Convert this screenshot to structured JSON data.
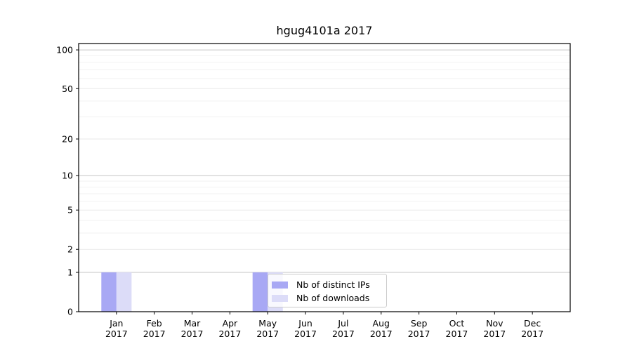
{
  "chart_data": {
    "type": "bar",
    "title": "hgug4101a 2017",
    "categories": [
      "Jan",
      "Feb",
      "Mar",
      "Apr",
      "May",
      "Jun",
      "Jul",
      "Aug",
      "Sep",
      "Oct",
      "Nov",
      "Dec"
    ],
    "x_year_label": "2017",
    "series": [
      {
        "name": "Nb of distinct IPs",
        "color": "#a8a8f4",
        "values": [
          1,
          0,
          0,
          0,
          1,
          0,
          0,
          0,
          0,
          0,
          0,
          0
        ]
      },
      {
        "name": "Nb of downloads",
        "color": "#dcdcf8",
        "values": [
          1,
          0,
          0,
          0,
          1,
          0,
          0,
          0,
          0,
          0,
          0,
          0
        ]
      }
    ],
    "yscale": "log1p",
    "ylim": [
      0,
      112
    ],
    "yticks": [
      0,
      1,
      2,
      5,
      10,
      20,
      50,
      100
    ],
    "minor_yticks": [
      3,
      4,
      6,
      7,
      8,
      9,
      30,
      40,
      60,
      70,
      80,
      90
    ],
    "decade_gridlines": [
      1,
      10,
      100
    ],
    "grid": true,
    "legend_position": "lower right inside",
    "colors": {
      "decade_grid": "#c6c6c6",
      "major_grid": "#e9e9e9",
      "minor_grid": "#f2f2f2",
      "axis": "#000000",
      "text": "#000000",
      "legend_border": "#cccccc"
    }
  }
}
